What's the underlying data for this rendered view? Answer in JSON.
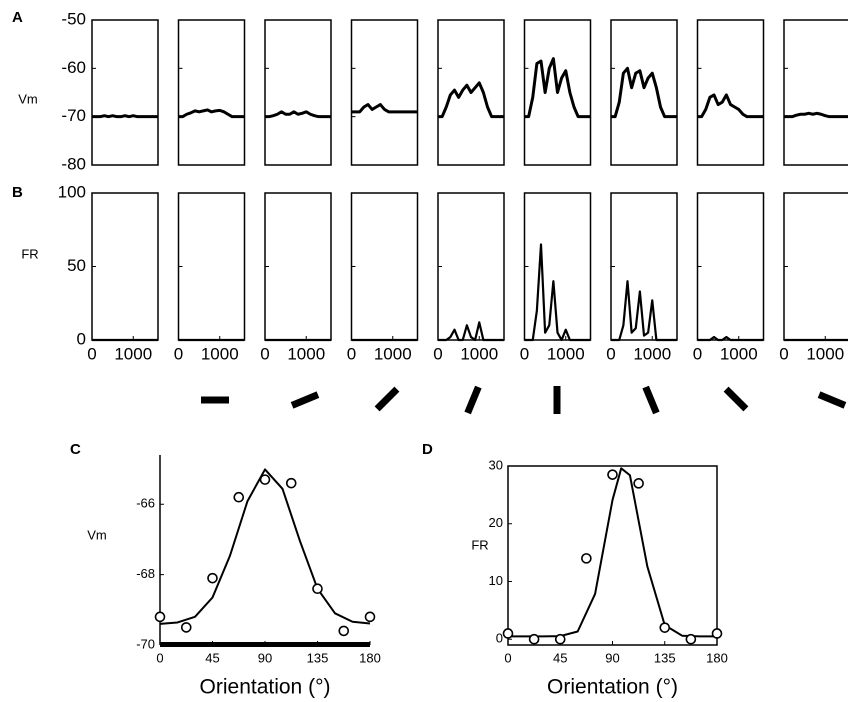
{
  "chart_data": [
    {
      "type": "line",
      "panel_label": "A",
      "ylabel": "Vm",
      "ylim": [
        -80,
        -50
      ],
      "yticks": [
        -50,
        -60,
        -70,
        -80
      ],
      "xlim": [
        0,
        1600
      ],
      "x": [
        0,
        100,
        200,
        300,
        400,
        500,
        600,
        700,
        800,
        900,
        1000,
        1100,
        1200,
        1300,
        1400,
        1500,
        1600
      ],
      "panels": [
        {
          "values": [
            -70,
            -70,
            -70,
            -69.8,
            -70,
            -69.8,
            -70,
            -70,
            -69.8,
            -70,
            -69.8,
            -70,
            -70,
            -70,
            -70,
            -70,
            -70
          ]
        },
        {
          "values": [
            -70,
            -70,
            -69.5,
            -69.2,
            -68.8,
            -69,
            -68.8,
            -68.6,
            -69,
            -68.8,
            -68.7,
            -69,
            -69.5,
            -70,
            -70,
            -70,
            -70
          ]
        },
        {
          "values": [
            -70,
            -70,
            -69.8,
            -69.5,
            -69,
            -69.5,
            -69.5,
            -69,
            -69.5,
            -69.3,
            -69,
            -69.5,
            -69.8,
            -70,
            -70,
            -70,
            -70
          ]
        },
        {
          "values": [
            -69,
            -69,
            -69,
            -68,
            -67.5,
            -68.5,
            -68,
            -67.5,
            -68.5,
            -69,
            -69,
            -69,
            -69,
            -69,
            -69,
            -69,
            -69
          ]
        },
        {
          "values": [
            -70,
            -70,
            -68,
            -65.5,
            -64.5,
            -66,
            -64.5,
            -63.5,
            -65,
            -64,
            -63,
            -65,
            -68,
            -70,
            -70,
            -70,
            -70
          ]
        },
        {
          "values": [
            -70,
            -70,
            -66,
            -59,
            -58.5,
            -65,
            -60,
            -58,
            -65,
            -62,
            -60.5,
            -65,
            -68,
            -70,
            -70,
            -70,
            -70
          ]
        },
        {
          "values": [
            -70,
            -70,
            -67,
            -61,
            -60,
            -64,
            -61,
            -60.5,
            -64,
            -62,
            -61,
            -64,
            -68,
            -70,
            -70,
            -70,
            -70
          ]
        },
        {
          "values": [
            -70,
            -70,
            -68.5,
            -66,
            -65.5,
            -67.5,
            -67,
            -65.5,
            -67.5,
            -68,
            -68.5,
            -69.5,
            -70,
            -70,
            -70,
            -70,
            -70
          ]
        },
        {
          "values": [
            -70,
            -70,
            -70,
            -69.7,
            -69.5,
            -69.5,
            -69.3,
            -69.5,
            -69.3,
            -69.5,
            -69.8,
            -70,
            -70,
            -70,
            -70,
            -70,
            -70
          ]
        }
      ]
    },
    {
      "type": "line",
      "panel_label": "B",
      "ylabel": "FR",
      "ylim": [
        0,
        100
      ],
      "yticks": [
        0,
        50,
        100
      ],
      "xlim": [
        0,
        1600
      ],
      "xticks": [
        0,
        1000
      ],
      "x": [
        0,
        100,
        200,
        300,
        400,
        500,
        600,
        700,
        800,
        900,
        1000,
        1100,
        1200,
        1300,
        1400,
        1500,
        1600
      ],
      "panels": [
        {
          "values": [
            0,
            0,
            0,
            0,
            0,
            0,
            0,
            0,
            0,
            0,
            0,
            0,
            0,
            0,
            0,
            0,
            0
          ]
        },
        {
          "values": [
            0,
            0,
            0,
            0,
            0,
            0,
            0,
            0,
            0,
            0,
            0,
            0,
            0,
            0,
            0,
            0,
            0
          ]
        },
        {
          "values": [
            0,
            0,
            0,
            0,
            0,
            0,
            0,
            0,
            0,
            0,
            0,
            0,
            0,
            0,
            0,
            0,
            0
          ]
        },
        {
          "values": [
            0,
            0,
            0,
            0,
            0,
            0,
            0,
            0,
            0,
            0,
            0,
            0,
            0,
            0,
            0,
            0,
            0
          ]
        },
        {
          "values": [
            0,
            0,
            0,
            2,
            7,
            0,
            0,
            10,
            2,
            0,
            12,
            0,
            0,
            0,
            0,
            0,
            0
          ]
        },
        {
          "values": [
            0,
            0,
            0,
            20,
            65,
            5,
            10,
            40,
            5,
            0,
            7,
            0,
            0,
            0,
            0,
            0,
            0
          ]
        },
        {
          "values": [
            0,
            0,
            0,
            10,
            40,
            5,
            8,
            33,
            3,
            5,
            27,
            0,
            0,
            0,
            0,
            0,
            0
          ]
        },
        {
          "values": [
            0,
            0,
            0,
            0,
            2,
            0,
            0,
            2,
            0,
            0,
            0,
            0,
            0,
            0,
            0,
            0,
            0
          ]
        },
        {
          "values": [
            0,
            0,
            0,
            0,
            0,
            0,
            0,
            0,
            0,
            0,
            0,
            0,
            0,
            0,
            0,
            0,
            0
          ]
        }
      ]
    },
    {
      "type": "scatter",
      "panel_label": "C",
      "ylabel": "Vm",
      "xlabel": "Orientation (°)",
      "xlim": [
        0,
        180
      ],
      "ylim": [
        -70,
        -64.6
      ],
      "xticks": [
        0,
        45,
        90,
        135,
        180
      ],
      "yticks": [
        -66,
        -68,
        -70
      ],
      "x": [
        0,
        22.5,
        45,
        67.5,
        90,
        112.5,
        135,
        157.5,
        180
      ],
      "y": [
        -69.2,
        -69.5,
        -68.1,
        -65.8,
        -65.3,
        -65.4,
        -68.4,
        -69.6,
        -69.2
      ],
      "fit": {
        "x": [
          0,
          15,
          30,
          45,
          60,
          75,
          90,
          105,
          120,
          135,
          150,
          165,
          180
        ],
        "values": [
          -69.4,
          -69.36,
          -69.2,
          -68.65,
          -67.46,
          -65.91,
          -65.01,
          -65.56,
          -67.05,
          -68.4,
          -69.1,
          -69.34,
          -69.39
        ]
      }
    },
    {
      "type": "scatter",
      "panel_label": "D",
      "ylabel": "FR",
      "xlabel": "Orientation (°)",
      "xlim": [
        0,
        180
      ],
      "ylim": [
        -1,
        30
      ],
      "xticks": [
        0,
        45,
        90,
        135,
        180
      ],
      "yticks": [
        0,
        10,
        20,
        30
      ],
      "x": [
        0,
        22.5,
        45,
        67.5,
        90,
        112.5,
        135,
        157.5,
        180
      ],
      "y": [
        1,
        0,
        0,
        14,
        28.5,
        27,
        2,
        0,
        1
      ],
      "fit": {
        "x": [
          0,
          15,
          30,
          45,
          60,
          75,
          90,
          97.5,
          105,
          120,
          135,
          150,
          165,
          180
        ],
        "values": [
          0.5,
          0.5,
          0.5,
          0.54,
          1.34,
          7.85,
          24.1,
          29.6,
          28.4,
          12.6,
          2.44,
          0.61,
          0.5,
          0.5
        ]
      }
    }
  ]
}
